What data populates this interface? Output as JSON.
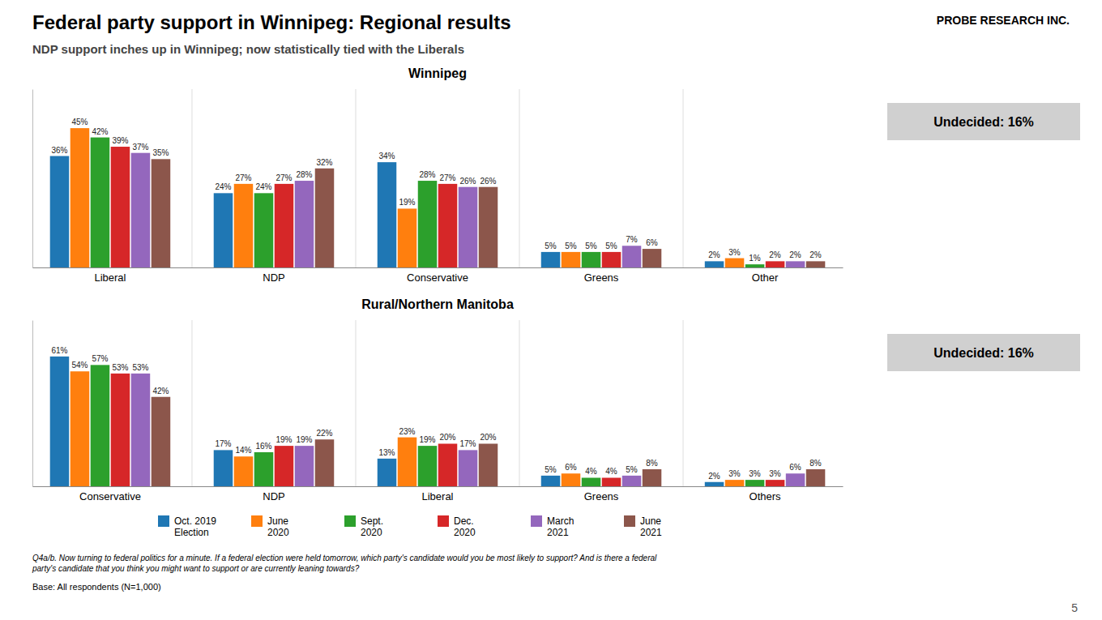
{
  "title": "Federal party support in Winnipeg: Regional results",
  "subtitle": "NDP support inches up in Winnipeg; now statistically tied with the Liberals",
  "logo": "PROBE RESEARCH INC.",
  "footnote": "Q4a/b. Now turning to federal politics for a minute. If a federal election were held tomorrow, which party's candidate would you be most likely to support? And is there a federal\nparty's candidate that you think you might want to support or are currently leaning towards?",
  "base": "Base: All respondents (N=1,000)",
  "page_number": "5",
  "chart_data": [
    {
      "type": "bar",
      "title": "Winnipeg",
      "annotations": [
        "Undecided: 16%"
      ],
      "categories": [
        "Liberal",
        "NDP",
        "Conservative",
        "Greens",
        "Other"
      ],
      "series": [
        {
          "name": "Oct. 2019\nElection",
          "values": [
            36,
            24,
            34,
            5,
            2
          ],
          "value_labels": [
            "36%",
            "24%",
            "34%",
            "5%",
            "2%"
          ]
        },
        {
          "name": "June\n2020",
          "values": [
            45,
            27,
            19,
            5,
            3
          ],
          "value_labels": [
            "45%",
            "27%",
            "19%",
            "5%",
            "3%"
          ]
        },
        {
          "name": "Sept.\n2020",
          "values": [
            42,
            24,
            28,
            5,
            1
          ],
          "value_labels": [
            "42%",
            "24%",
            "28%",
            "5%",
            "1%"
          ]
        },
        {
          "name": "Dec.\n2020",
          "values": [
            39,
            27,
            27,
            5,
            2
          ],
          "value_labels": [
            "39%",
            "27%",
            "27%",
            "5%",
            "2%"
          ]
        },
        {
          "name": "March\n2021",
          "values": [
            37,
            28,
            26,
            7,
            2
          ],
          "value_labels": [
            "37%",
            "28%",
            "26%",
            "7%",
            "2%"
          ]
        },
        {
          "name": "June\n2021",
          "values": [
            35,
            32,
            26,
            6,
            2
          ],
          "value_labels": [
            "35%",
            "32%",
            "26%",
            "6%",
            "2%"
          ]
        }
      ],
      "ylim": [
        0,
        57.6
      ],
      "data_labels": true,
      "tick_labels": "x"
    },
    {
      "type": "bar",
      "title": "Rural/Northern Manitoba",
      "annotations": [
        "Undecided: 16%"
      ],
      "categories": [
        "Conservative",
        "NDP",
        "Liberal",
        "Greens",
        "Others"
      ],
      "series": [
        {
          "name": "Oct. 2019\nElection",
          "values": [
            61,
            17,
            13,
            5,
            2
          ],
          "value_labels": [
            "61%",
            "17%",
            "13%",
            "5%",
            "2%"
          ]
        },
        {
          "name": "June\n2020",
          "values": [
            54,
            14,
            23,
            6,
            3
          ],
          "value_labels": [
            "54%",
            "14%",
            "23%",
            "6%",
            "3%"
          ]
        },
        {
          "name": "Sept.\n2020",
          "values": [
            57,
            16,
            19,
            4,
            3
          ],
          "value_labels": [
            "57%",
            "16%",
            "19%",
            "4%",
            "3%"
          ]
        },
        {
          "name": "Dec.\n2020",
          "values": [
            53,
            19,
            20,
            4,
            3
          ],
          "value_labels": [
            "53%",
            "19%",
            "20%",
            "4%",
            "3%"
          ]
        },
        {
          "name": "March\n2021",
          "values": [
            53,
            19,
            17,
            5,
            6
          ],
          "value_labels": [
            "53%",
            "19%",
            "17%",
            "5%",
            "6%"
          ]
        },
        {
          "name": "June\n2021",
          "values": [
            42,
            22,
            20,
            8,
            8
          ],
          "value_labels": [
            "42%",
            "22%",
            "20%",
            "8%",
            "8%"
          ]
        }
      ],
      "ylim": [
        0,
        78.08
      ],
      "data_labels": true,
      "tick_labels": "x",
      "legend": "bottom"
    }
  ]
}
